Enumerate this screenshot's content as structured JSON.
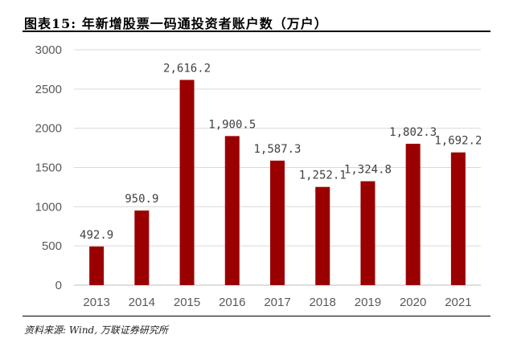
{
  "header": {
    "title": "图表15:  年新增股票一码通投资者账户数（万户）"
  },
  "footer": {
    "source": "资料来源: Wind, 万联证券研究所"
  },
  "colors": {
    "bar": "#9B0000",
    "grid": "#d9d9d9",
    "axis": "#bfbfbf"
  },
  "chart_data": {
    "type": "bar",
    "title": "",
    "xlabel": "",
    "ylabel": "",
    "categories": [
      "2013",
      "2014",
      "2015",
      "2016",
      "2017",
      "2018",
      "2019",
      "2020",
      "2021"
    ],
    "values": [
      492.9,
      950.9,
      2616.2,
      1900.5,
      1587.3,
      1252.1,
      1324.8,
      1802.3,
      1692.2
    ],
    "value_labels": [
      "492.9",
      "950.9",
      "2,616.2",
      "1,900.5",
      "1,587.3",
      "1,252.1",
      "1,324.8",
      "1,802.3",
      "1,692.2"
    ],
    "ylim": [
      0,
      3000
    ],
    "yticks": [
      0,
      500,
      1000,
      1500,
      2000,
      2500,
      3000
    ],
    "grid": true,
    "legend": "none"
  }
}
